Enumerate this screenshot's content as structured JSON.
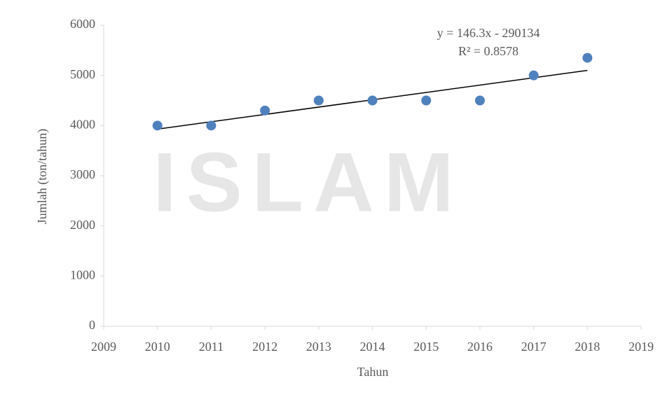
{
  "watermark": "ISLAM",
  "chart_data": {
    "type": "scatter",
    "x_label": "Tahun",
    "y_label": "Jumlah (ton/tahun)",
    "x": [
      2010,
      2011,
      2012,
      2013,
      2014,
      2015,
      2016,
      2017,
      2018
    ],
    "series": [
      {
        "name": "Jumlah",
        "color": "#4f81bd",
        "values": [
          4000,
          4000,
          4300,
          4500,
          4500,
          4500,
          4500,
          5000,
          5350
        ]
      }
    ],
    "trendline": {
      "slope": 146.3,
      "intercept": -290134,
      "color": "#000000",
      "equation": "y = 146.3x - 290134",
      "r2": "R² = 0.8578"
    },
    "xlim": [
      2009,
      2019
    ],
    "xticks": [
      2009,
      2010,
      2011,
      2012,
      2013,
      2014,
      2015,
      2016,
      2017,
      2018,
      2019
    ],
    "ylim": [
      0,
      6000
    ],
    "yticks": [
      0,
      1000,
      2000,
      3000,
      4000,
      5000,
      6000
    ],
    "grid": false
  }
}
